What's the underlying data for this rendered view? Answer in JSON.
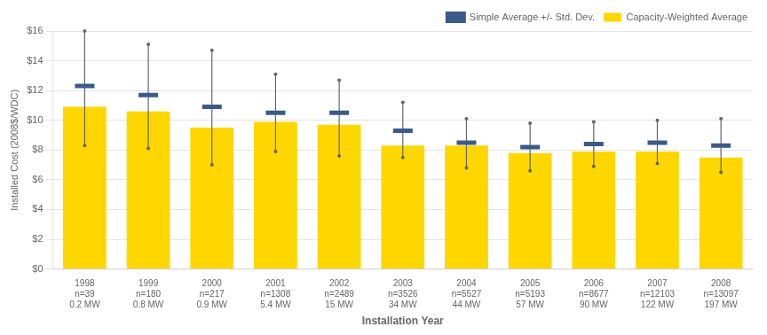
{
  "chart_data": {
    "type": "bar",
    "xlabel": "Installation Year",
    "ylabel": "Installed Cost (2008$/WDC)",
    "categories": [
      [
        "1998",
        "n=39",
        "0.2 MW"
      ],
      [
        "1999",
        "n=180",
        "0.8 MW"
      ],
      [
        "2000",
        "n=217",
        "0.9 MW"
      ],
      [
        "2001",
        "n=1308",
        "5.4 MW"
      ],
      [
        "2002",
        "n=2489",
        "15 MW"
      ],
      [
        "2003",
        "n=3526",
        "34 MW"
      ],
      [
        "2004",
        "n=5527",
        "44 MW"
      ],
      [
        "2005",
        "n=5193",
        "57 MW"
      ],
      [
        "2006",
        "n=8677",
        "90 MW"
      ],
      [
        "2007",
        "n=12103",
        "122 MW"
      ],
      [
        "2008",
        "n=13097",
        "197 MW"
      ]
    ],
    "series": [
      {
        "name": "Capacity-Weighted Average",
        "type": "bar",
        "color": "#FFD700",
        "values": [
          10.9,
          10.6,
          9.5,
          9.9,
          9.7,
          8.3,
          8.3,
          7.8,
          7.9,
          7.9,
          7.5
        ]
      },
      {
        "name": "Simple Average +/- Std. Dev.",
        "type": "scatter",
        "marker": "dash",
        "color": "#3A5A8A",
        "values": [
          12.3,
          11.7,
          10.9,
          10.5,
          10.5,
          9.3,
          8.5,
          8.2,
          8.4,
          8.5,
          8.3
        ],
        "std_dev_upper": [
          16.0,
          15.1,
          14.7,
          13.1,
          12.7,
          11.2,
          10.1,
          9.8,
          9.9,
          10.0,
          10.1
        ],
        "std_dev_lower": [
          8.3,
          8.1,
          7.0,
          7.9,
          7.6,
          7.5,
          6.8,
          6.6,
          6.9,
          7.1,
          6.5
        ]
      }
    ],
    "ylim": [
      0,
      16
    ],
    "yticks": [
      {
        "value": 0,
        "label": "$0"
      },
      {
        "value": 2,
        "label": "$2"
      },
      {
        "value": 4,
        "label": "$4"
      },
      {
        "value": 6,
        "label": "$6"
      },
      {
        "value": 8,
        "label": "$8"
      },
      {
        "value": 10,
        "label": "$10"
      },
      {
        "value": 12,
        "label": "$12"
      },
      {
        "value": 14,
        "label": "$14"
      },
      {
        "value": 16,
        "label": "$16"
      }
    ],
    "grid": true,
    "legend": "upper right"
  }
}
